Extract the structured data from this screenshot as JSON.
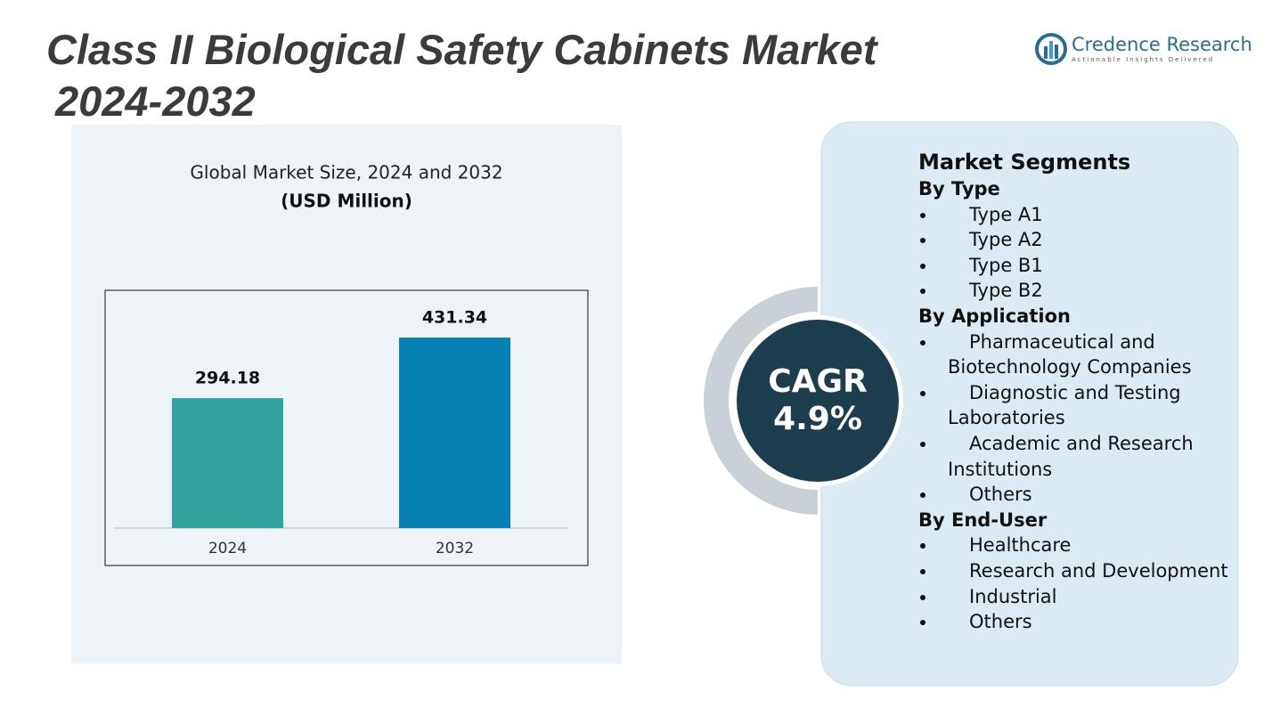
{
  "header": {
    "title_line1": "Class II Biological Safety Cabinets Market",
    "title_line2": "2024-2032"
  },
  "logo": {
    "name": "Credence Research",
    "tagline": "Actionable Insights Delivered"
  },
  "chart_data": {
    "type": "bar",
    "title": "Global Market Size, 2024 and 2032",
    "subtitle": "(USD Million)",
    "categories": [
      "2024",
      "2032"
    ],
    "values": [
      294.18,
      431.34
    ],
    "colors": [
      "#31a39f",
      "#0780b3"
    ],
    "ylim": [
      0,
      500
    ]
  },
  "cagr": {
    "label": "CAGR",
    "value": "4.9%"
  },
  "segments": {
    "title": "Market Segments",
    "groups": [
      {
        "heading": "By Type",
        "items": [
          "Type A1",
          "Type A2",
          "Type B1",
          "Type B2"
        ]
      },
      {
        "heading": "By Application",
        "items": [
          "Pharmaceutical and Biotechnology Companies",
          "Diagnostic and Testing Laboratories",
          "Academic and Research Institutions",
          "Others"
        ]
      },
      {
        "heading": "By End-User",
        "items": [
          "Healthcare",
          "Research and Development",
          "Industrial",
          "Others"
        ]
      }
    ]
  }
}
